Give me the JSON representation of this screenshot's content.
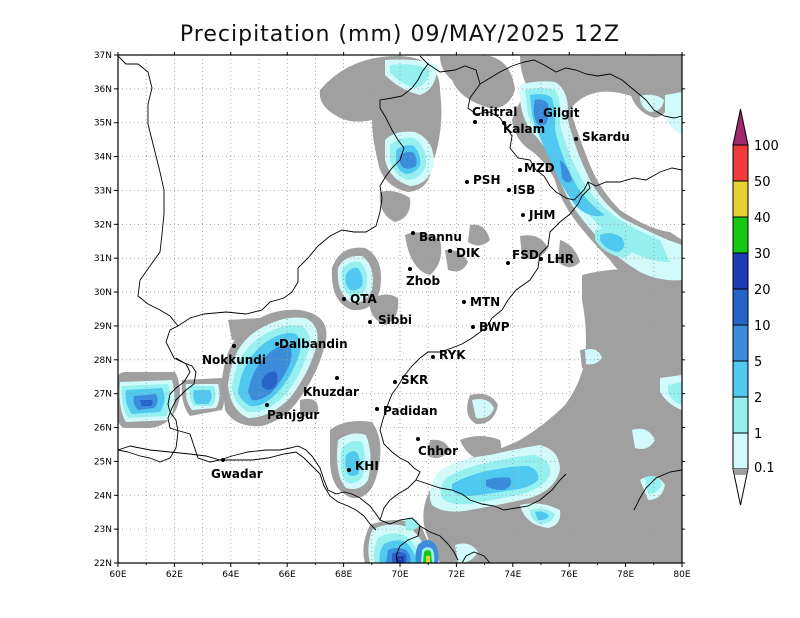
{
  "title": "Precipitation (mm) 09/MAY/2025 12Z",
  "lon_ticks": [
    "60E",
    "62E",
    "64E",
    "66E",
    "68E",
    "70E",
    "72E",
    "74E",
    "76E",
    "78E",
    "80E"
  ],
  "lat_ticks": [
    "22N",
    "23N",
    "24N",
    "25N",
    "26N",
    "27N",
    "28N",
    "29N",
    "30N",
    "31N",
    "32N",
    "33N",
    "34N",
    "35N",
    "36N",
    "37N"
  ],
  "colors": {
    "c0_1": "#a0a0a0",
    "c1": "#d2fafa",
    "c2": "#96f0f0",
    "c5": "#50c8f0",
    "c10": "#3c8cdc",
    "c20": "#2864c8",
    "c30": "#1e3cb4",
    "c40": "#14c814",
    "c50": "#e6d232",
    "c100": "#f03c3c",
    "over": "#a0286e"
  },
  "colorbar": {
    "labels": [
      "100",
      "50",
      "40",
      "30",
      "20",
      "10",
      "5",
      "2",
      "1",
      "0.1"
    ]
  },
  "cities": [
    {
      "name": "Chitral",
      "lon": 72.6,
      "lat": 35.9
    },
    {
      "name": "Gilgit",
      "lon": 74.3,
      "lat": 35.9
    },
    {
      "name": "Kalam",
      "lon": 72.6,
      "lat": 35.5
    },
    {
      "name": "Skardu",
      "lon": 75.6,
      "lat": 35.3
    },
    {
      "name": "MZD",
      "lon": 73.5,
      "lat": 34.4
    },
    {
      "name": "PSH",
      "lon": 71.6,
      "lat": 34.0
    },
    {
      "name": "ISB",
      "lon": 73.1,
      "lat": 33.7
    },
    {
      "name": "JHM",
      "lon": 73.7,
      "lat": 32.9
    },
    {
      "name": "Bannu",
      "lon": 70.6,
      "lat": 32.9
    },
    {
      "name": "DIK",
      "lon": 70.9,
      "lat": 31.8
    },
    {
      "name": "FSD",
      "lon": 73.1,
      "lat": 31.4
    },
    {
      "name": "LHR",
      "lon": 74.3,
      "lat": 31.6
    },
    {
      "name": "Zhob",
      "lon": 69.4,
      "lat": 31.4
    },
    {
      "name": "QTA",
      "lon": 66.9,
      "lat": 30.2
    },
    {
      "name": "MTN",
      "lon": 71.5,
      "lat": 30.2
    },
    {
      "name": "Sibbi",
      "lon": 67.9,
      "lat": 29.5
    },
    {
      "name": "BWP",
      "lon": 71.7,
      "lat": 29.4
    },
    {
      "name": "Dalbandin",
      "lon": 64.4,
      "lat": 28.9
    },
    {
      "name": "Nokkundi",
      "lon": 62.8,
      "lat": 28.8
    },
    {
      "name": "RYK",
      "lon": 70.3,
      "lat": 28.4
    },
    {
      "name": "Khuzdar",
      "lon": 66.6,
      "lat": 27.8
    },
    {
      "name": "SKR",
      "lon": 68.9,
      "lat": 27.7
    },
    {
      "name": "Panjgur",
      "lon": 64.1,
      "lat": 26.9
    },
    {
      "name": "Padidan",
      "lon": 68.1,
      "lat": 26.8
    },
    {
      "name": "Chhor",
      "lon": 69.8,
      "lat": 25.5
    },
    {
      "name": "Gwadar",
      "lon": 62.3,
      "lat": 25.1
    },
    {
      "name": "KHI",
      "lon": 67.0,
      "lat": 24.9
    }
  ]
}
